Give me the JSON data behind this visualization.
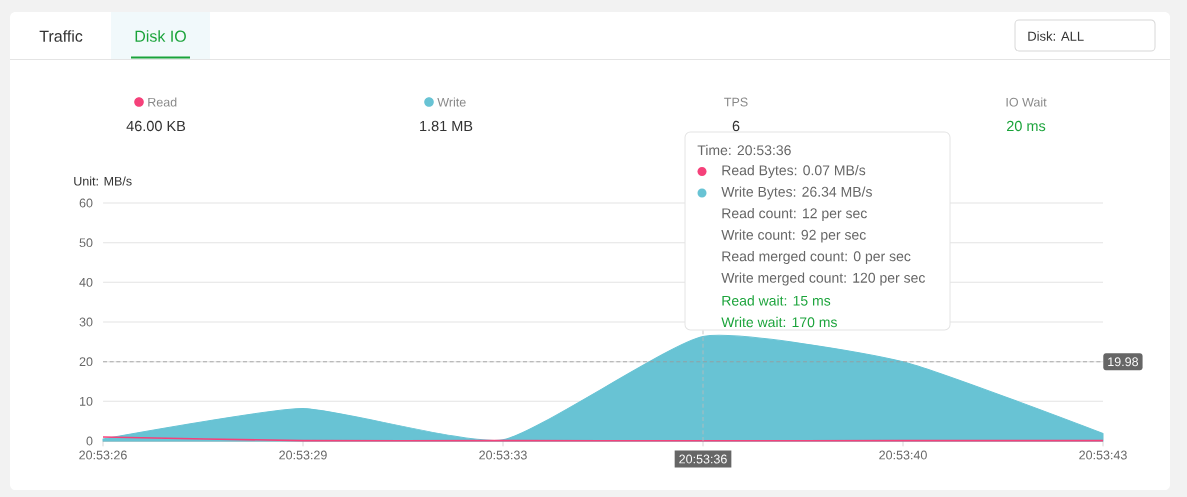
{
  "chart_data": {
    "type": "area",
    "ylabel": "Unit: MB/s",
    "categories": [
      "20:53:26",
      "20:53:29",
      "20:53:33",
      "20:53:36",
      "20:53:40",
      "20:53:43"
    ],
    "series": [
      {
        "name": "Read",
        "type": "line",
        "color": "#f5417a",
        "values": [
          1.0,
          0.1,
          0.1,
          0.07,
          0.1,
          0.1
        ]
      },
      {
        "name": "Write",
        "color": "#68c3d4",
        "values": [
          0.5,
          8.2,
          0.3,
          26.34,
          20,
          1.9
        ]
      }
    ],
    "ylim": [
      0,
      60
    ],
    "yticks": [
      0,
      10,
      20,
      30,
      40,
      50,
      60
    ],
    "grid": "y",
    "legend": "top",
    "ref_lines": [
      {
        "axis": "y",
        "value": 19.98,
        "label": "19.98",
        "color": "#999999",
        "line_style": "dashed"
      },
      {
        "axis": "x",
        "value": "20:53:36",
        "color": "#bbbbbb",
        "line_style": "dashed"
      }
    ],
    "annotations": [
      "Traffic",
      "Disk IO",
      "Disk: ALL",
      "46.00 KB",
      "1.81 MB",
      "TPS",
      "6",
      "IO Wait",
      "20 ms",
      "Time: 20:53:36",
      "Read Bytes: 0.07 MB/s",
      "Write Bytes: 26.34 MB/s",
      "Read count: 12 per sec",
      "Write count: 92 per sec",
      "Read merged count: 0 per sec",
      "Write merged count: 120 per sec",
      "Read wait: 15 ms",
      "Write wait: 170 ms"
    ]
  }
}
